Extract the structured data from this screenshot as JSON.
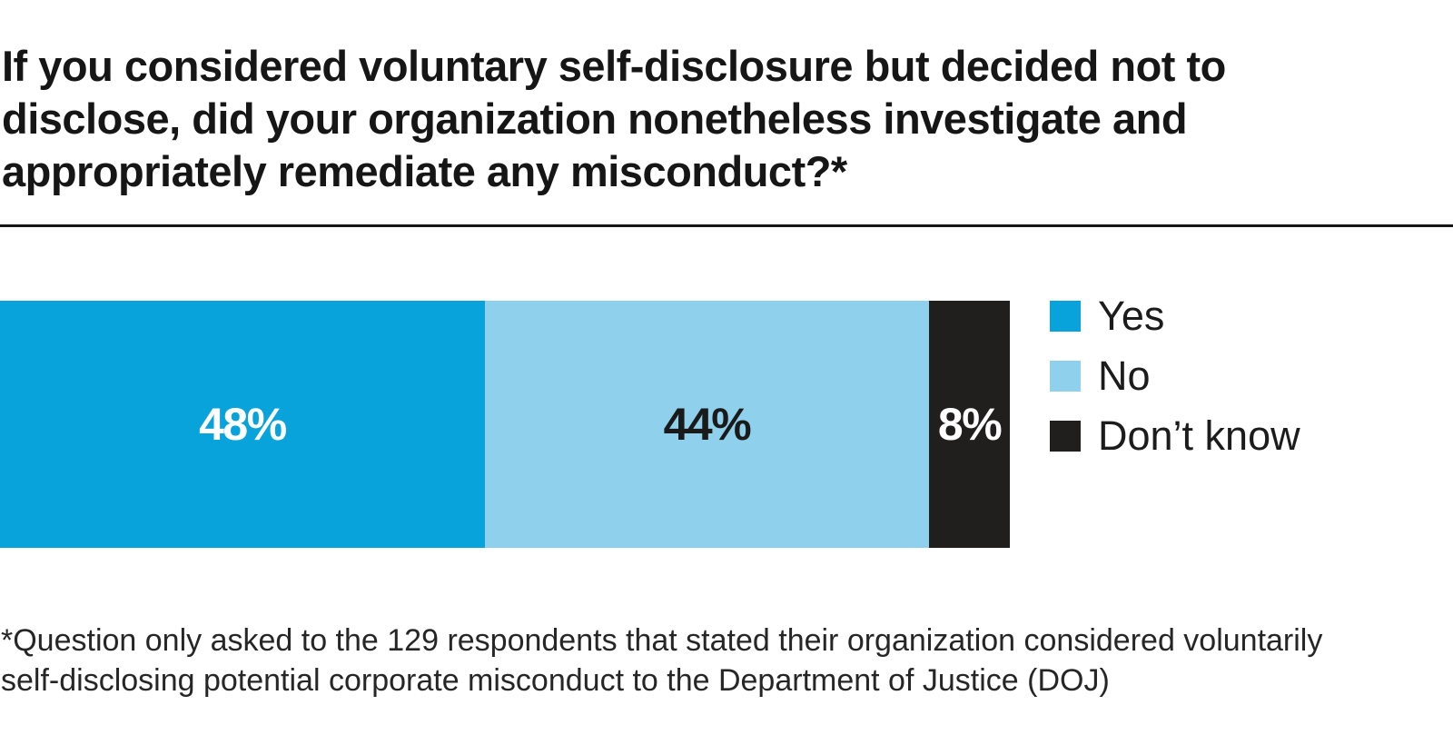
{
  "page": {
    "background": "#FFFFFF",
    "divider_color": "#161616"
  },
  "title": {
    "lines": [
      "If you considered voluntary self-disclosure but decided not to",
      "disclose, did your organization nonetheless investigate and",
      "appropriately remediate any misconduct?*"
    ],
    "color": "#161616"
  },
  "footnote": {
    "lines": [
      "*Question only asked to the 129 respondents that stated their organization considered voluntarily",
      "self-disclosing potential corporate misconduct to the Department of Justice (DOJ)"
    ]
  },
  "chart_data": {
    "type": "bar",
    "variant": "horizontal-stacked-single-bar",
    "title": "If you considered voluntary self-disclosure but decided not to disclose, did your organization nonetheless investigate and appropriately remediate any misconduct?*",
    "footnote": "*Question only asked to the 129 respondents that stated their organization considered voluntarily self-disclosing potential corporate misconduct to the Department of Justice (DOJ)",
    "legend_position": "right",
    "axis": "none",
    "value_range": [
      0,
      100
    ],
    "series": [
      {
        "name": "Yes",
        "value_pct": 48,
        "label": "48%",
        "color": "#09A3DC",
        "label_color": "#FFFFFF"
      },
      {
        "name": "No",
        "value_pct": 44,
        "label": "44%",
        "color": "#8FD1EC",
        "label_color": "#1A1A1A"
      },
      {
        "name": "Don’t know",
        "value_pct": 8,
        "label": "8%",
        "color": "#211E1E",
        "label_color": "#FFFFFF"
      }
    ]
  }
}
